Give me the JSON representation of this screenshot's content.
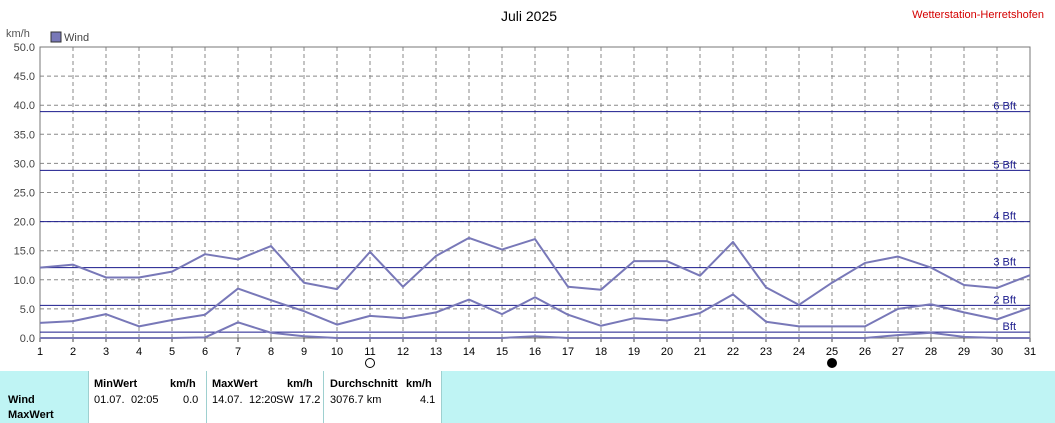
{
  "header": {
    "title": "Juli 2025",
    "station": "Wetterstation-Herretshofen",
    "unit_label": "km/h"
  },
  "legend": {
    "label": "Wind",
    "color": "#7878b8"
  },
  "colors": {
    "series": "#7878b8",
    "beaufort_line": "#1a1a8c",
    "grid": "#888888",
    "panel": "#bff4f4"
  },
  "chart_data": {
    "type": "line",
    "title": "Juli 2025",
    "ylabel": "km/h",
    "ylim": [
      0,
      50
    ],
    "yticks": [
      "0.0",
      "5.0",
      "10.0",
      "15.0",
      "20.0",
      "25.0",
      "30.0",
      "35.0",
      "40.0",
      "45.0",
      "50.0"
    ],
    "x": [
      1,
      2,
      3,
      4,
      5,
      6,
      7,
      8,
      9,
      10,
      11,
      12,
      13,
      14,
      15,
      16,
      17,
      18,
      19,
      20,
      21,
      22,
      23,
      24,
      25,
      26,
      27,
      28,
      29,
      30,
      31
    ],
    "grid": true,
    "legend_position": "top-left",
    "series": [
      {
        "name": "Wind",
        "role": "max",
        "values": [
          12.1,
          12.6,
          10.4,
          10.4,
          11.4,
          14.4,
          13.5,
          15.8,
          9.5,
          8.4,
          14.8,
          8.8,
          14.1,
          17.2,
          15.2,
          17.0,
          8.8,
          8.3,
          13.2,
          13.2,
          10.7,
          16.5,
          8.7,
          5.7,
          9.5,
          12.9,
          14.0,
          12.1,
          9.1,
          8.6,
          10.8
        ]
      },
      {
        "role": "avg",
        "values": [
          2.6,
          2.9,
          4.1,
          2.0,
          3.1,
          4.0,
          8.5,
          6.5,
          4.6,
          2.3,
          3.8,
          3.4,
          4.4,
          6.6,
          4.1,
          7.0,
          4.0,
          2.1,
          3.4,
          3.0,
          4.3,
          7.5,
          2.8,
          2.0,
          2.0,
          2.0,
          5.0,
          5.8,
          4.4,
          3.2,
          5.2
        ]
      },
      {
        "role": "min",
        "values": [
          0,
          0,
          0,
          0,
          0,
          0.1,
          2.7,
          0.9,
          0.3,
          0,
          0,
          0,
          0,
          0,
          0,
          0.3,
          0,
          0,
          0,
          0,
          0,
          0,
          0,
          0,
          0,
          0,
          0.5,
          0.9,
          0.2,
          0,
          0
        ]
      }
    ],
    "beaufort": [
      {
        "label": "Bft",
        "value": 1
      },
      {
        "label": "2 Bft",
        "value": 5.6
      },
      {
        "label": "3 Bft",
        "value": 12.1
      },
      {
        "label": "4 Bft",
        "value": 20
      },
      {
        "label": "5 Bft",
        "value": 28.8
      },
      {
        "label": "6 Bft",
        "value": 38.9
      }
    ],
    "moon_phases": [
      {
        "day": 11,
        "phase": "full"
      },
      {
        "day": 25,
        "phase": "new"
      }
    ]
  },
  "stats": {
    "row_labels": [
      "Wind",
      "MaxWert"
    ],
    "min_header": "MinWert",
    "min_unit": "km/h",
    "min_date": "01.07.",
    "min_time": "02:05",
    "min_value": "0.0",
    "max_header": "MaxWert",
    "max_unit": "km/h",
    "max_date": "14.07.",
    "max_time": "12:20",
    "max_dir": "SW",
    "max_value": "17.2",
    "avg_header": "Durchschnitt",
    "avg_unit": "km/h",
    "avg_distance": "3076.7 km",
    "avg_value": "4.1"
  }
}
